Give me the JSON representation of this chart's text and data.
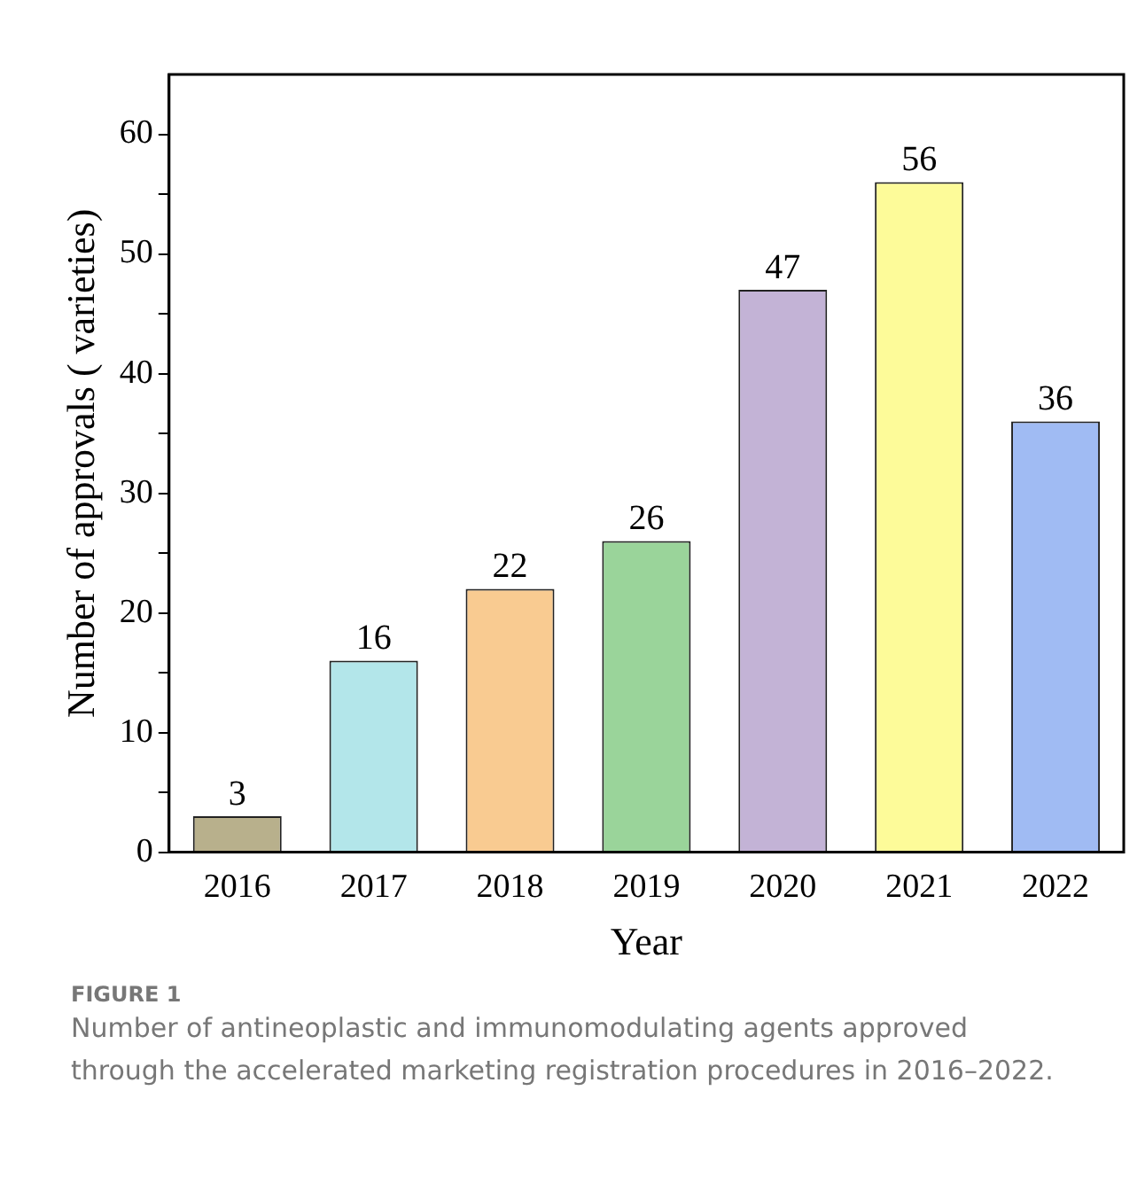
{
  "chart_data": {
    "type": "bar",
    "xlabel": "Year",
    "ylabel": "Number of approvals ( varieties)",
    "categories": [
      "2016",
      "2017",
      "2018",
      "2019",
      "2020",
      "2021",
      "2022"
    ],
    "values": [
      3,
      16,
      22,
      26,
      47,
      56,
      36
    ],
    "colors": [
      "#b8b08c",
      "#b3e6ea",
      "#f9cb91",
      "#9ad49a",
      "#c3b3d6",
      "#fdfb99",
      "#a0bbf3"
    ],
    "ylim": [
      0,
      65
    ],
    "yticks": [
      0,
      {
        "value": 5,
        "label": null
      },
      10,
      {
        "value": 15,
        "label": null
      },
      20,
      {
        "value": 25,
        "label": null
      },
      30,
      {
        "value": 35,
        "label": null
      },
      40,
      {
        "value": 45,
        "label": null
      },
      50,
      {
        "value": 55,
        "label": null
      },
      60
    ],
    "grid": false,
    "legend": false,
    "data_labels": true,
    "annotations": [
      "FIGURE 1",
      "Number of antineoplastic and immunomodulating agents approved through the accelerated marketing registration procedures in 2016–2022."
    ]
  }
}
